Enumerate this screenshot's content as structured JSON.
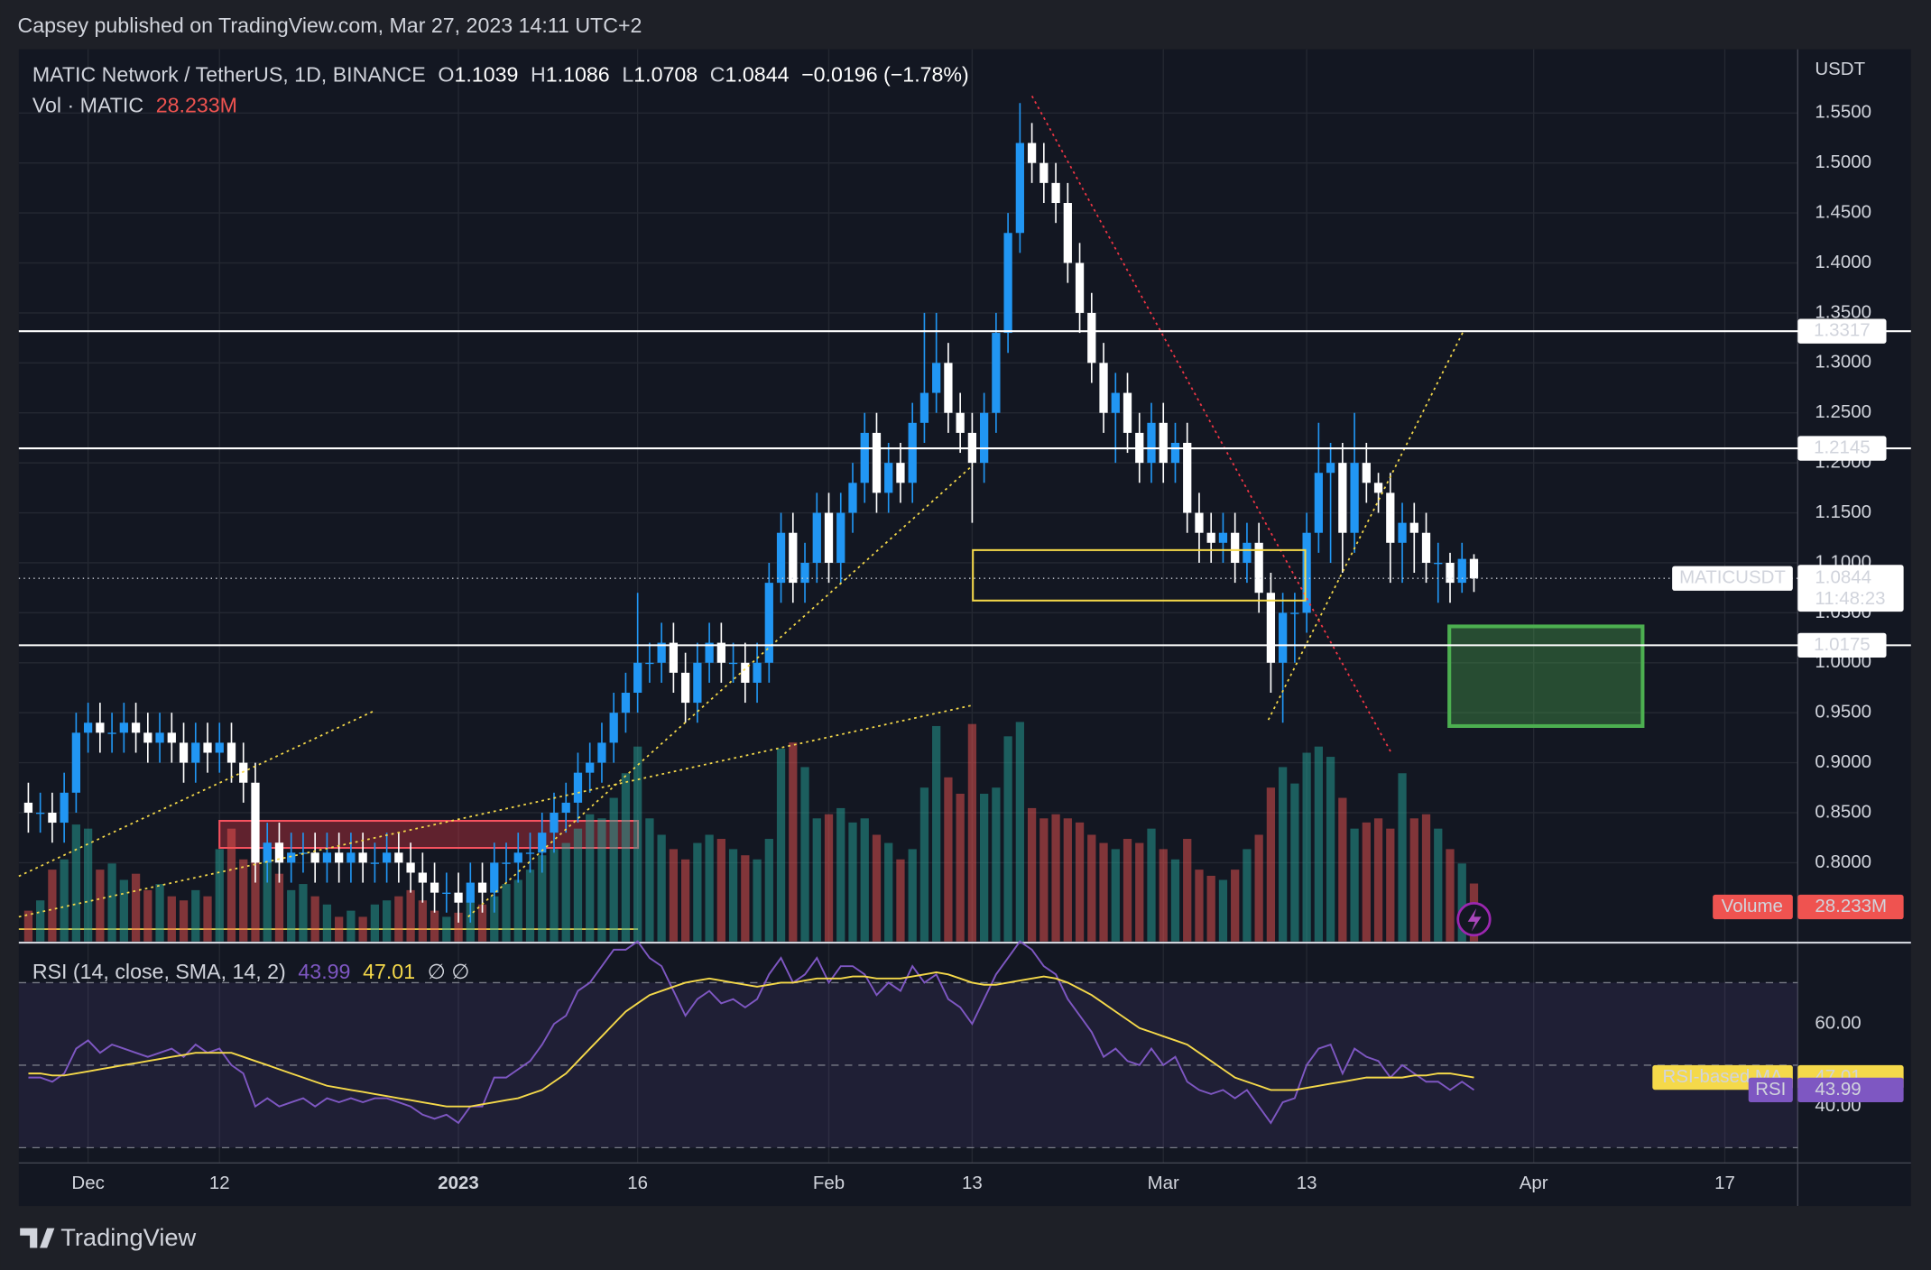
{
  "header": {
    "publisher": "Capsey published on TradingView.com, Mar 27, 2023 14:11 UTC+2",
    "brand": "TradingView"
  },
  "chart_data": {
    "type": "candlestick",
    "title": "MATIC Network / TetherUS, 1D, BINANCE",
    "ohlc_keys": [
      "O",
      "H",
      "L",
      "C"
    ],
    "ohlc_values": [
      "1.1039",
      "1.1086",
      "1.0708",
      "1.0844"
    ],
    "change": "−0.0196 (−1.78%)",
    "currency": "USDT",
    "colors": {
      "up": "#2196f3",
      "down": "#ffffff",
      "volume_up": "#26a69a",
      "volume_down": "#ef5350"
    },
    "xlim": [
      -0.8,
      148.1
    ],
    "xticks": [
      {
        "value": 5,
        "label": "Dec"
      },
      {
        "value": 16,
        "label": "12"
      },
      {
        "value": 36,
        "label": "2023"
      },
      {
        "value": 51,
        "label": "16"
      },
      {
        "value": 67,
        "label": "Feb"
      },
      {
        "value": 79,
        "label": "13"
      },
      {
        "value": 95,
        "label": "Mar"
      },
      {
        "value": 107,
        "label": "13"
      },
      {
        "value": 126,
        "label": "Apr"
      },
      {
        "value": 142,
        "label": "17"
      }
    ],
    "ylim": [
      0.7212,
      1.6138
    ],
    "yticks": [
      {
        "value": 0.8,
        "label": "0.8000"
      },
      {
        "value": 0.85,
        "label": "0.8500"
      },
      {
        "value": 0.9,
        "label": "0.9000"
      },
      {
        "value": 0.95,
        "label": "0.9500"
      },
      {
        "value": 1.0,
        "label": "1.0000"
      },
      {
        "value": 1.05,
        "label": "1.0500"
      },
      {
        "value": 1.1,
        "label": "1.1000"
      },
      {
        "value": 1.15,
        "label": "1.1500"
      },
      {
        "value": 1.2,
        "label": "1.2000"
      },
      {
        "value": 1.25,
        "label": "1.2500"
      },
      {
        "value": 1.3,
        "label": "1.3000"
      },
      {
        "value": 1.35,
        "label": "1.3500"
      },
      {
        "value": 1.4,
        "label": "1.4000"
      },
      {
        "value": 1.45,
        "label": "1.4500"
      },
      {
        "value": 1.5,
        "label": "1.5000"
      },
      {
        "value": 1.55,
        "label": "1.5500"
      }
    ],
    "open": [
      0.86,
      0.85,
      0.85,
      0.84,
      0.87,
      0.93,
      0.94,
      0.93,
      0.93,
      0.94,
      0.93,
      0.92,
      0.93,
      0.92,
      0.9,
      0.92,
      0.91,
      0.92,
      0.9,
      0.88,
      0.8,
      0.82,
      0.8,
      0.81,
      0.81,
      0.8,
      0.81,
      0.8,
      0.81,
      0.8,
      0.8,
      0.81,
      0.8,
      0.79,
      0.78,
      0.77,
      0.77,
      0.76,
      0.78,
      0.77,
      0.8,
      0.8,
      0.81,
      0.81,
      0.83,
      0.85,
      0.86,
      0.89,
      0.9,
      0.92,
      0.95,
      0.97,
      1.0,
      1.0,
      1.02,
      0.99,
      0.96,
      1.0,
      1.02,
      1.0,
      1.0,
      0.98,
      1.0,
      1.08,
      1.13,
      1.08,
      1.1,
      1.15,
      1.1,
      1.15,
      1.18,
      1.23,
      1.17,
      1.2,
      1.18,
      1.24,
      1.27,
      1.3,
      1.25,
      1.23,
      1.2,
      1.25,
      1.33,
      1.43,
      1.52,
      1.5,
      1.48,
      1.46,
      1.4,
      1.35,
      1.3,
      1.25,
      1.27,
      1.23,
      1.2,
      1.24,
      1.2,
      1.22,
      1.15,
      1.13,
      1.12,
      1.13,
      1.1,
      1.12,
      1.07,
      1.0,
      1.05,
      1.05,
      1.13,
      1.19,
      1.2,
      1.13,
      1.2,
      1.18,
      1.17,
      1.12,
      1.14,
      1.13,
      1.1,
      1.1,
      1.08,
      1.1039
    ],
    "high": [
      0.88,
      0.87,
      0.87,
      0.89,
      0.95,
      0.96,
      0.96,
      0.95,
      0.96,
      0.96,
      0.95,
      0.95,
      0.95,
      0.94,
      0.94,
      0.94,
      0.94,
      0.94,
      0.92,
      0.9,
      0.84,
      0.84,
      0.83,
      0.83,
      0.83,
      0.83,
      0.83,
      0.83,
      0.83,
      0.82,
      0.83,
      0.83,
      0.82,
      0.81,
      0.8,
      0.79,
      0.79,
      0.8,
      0.8,
      0.82,
      0.82,
      0.83,
      0.83,
      0.85,
      0.87,
      0.88,
      0.91,
      0.92,
      0.94,
      0.97,
      0.99,
      1.07,
      1.02,
      1.04,
      1.04,
      1.01,
      1.02,
      1.04,
      1.04,
      1.02,
      1.02,
      1.02,
      1.1,
      1.15,
      1.15,
      1.12,
      1.17,
      1.17,
      1.17,
      1.2,
      1.25,
      1.25,
      1.22,
      1.22,
      1.26,
      1.35,
      1.35,
      1.32,
      1.27,
      1.25,
      1.27,
      1.35,
      1.45,
      1.56,
      1.54,
      1.52,
      1.5,
      1.48,
      1.42,
      1.37,
      1.32,
      1.29,
      1.29,
      1.25,
      1.26,
      1.26,
      1.24,
      1.24,
      1.17,
      1.15,
      1.15,
      1.15,
      1.14,
      1.14,
      1.09,
      1.07,
      1.07,
      1.15,
      1.24,
      1.22,
      1.22,
      1.25,
      1.22,
      1.19,
      1.19,
      1.16,
      1.16,
      1.15,
      1.12,
      1.11,
      1.12,
      1.1086
    ],
    "low": [
      0.83,
      0.83,
      0.82,
      0.82,
      0.85,
      0.91,
      0.91,
      0.91,
      0.91,
      0.91,
      0.9,
      0.9,
      0.9,
      0.88,
      0.88,
      0.89,
      0.89,
      0.88,
      0.86,
      0.78,
      0.78,
      0.78,
      0.78,
      0.79,
      0.78,
      0.78,
      0.78,
      0.78,
      0.78,
      0.78,
      0.78,
      0.78,
      0.77,
      0.76,
      0.75,
      0.75,
      0.74,
      0.74,
      0.75,
      0.75,
      0.78,
      0.78,
      0.79,
      0.79,
      0.81,
      0.83,
      0.84,
      0.87,
      0.88,
      0.9,
      0.93,
      0.95,
      0.98,
      0.98,
      0.97,
      0.94,
      0.94,
      0.98,
      0.98,
      0.98,
      0.96,
      0.96,
      0.98,
      1.06,
      1.06,
      1.06,
      1.08,
      1.08,
      1.08,
      1.13,
      1.16,
      1.15,
      1.15,
      1.16,
      1.16,
      1.22,
      1.25,
      1.23,
      1.21,
      1.14,
      1.18,
      1.23,
      1.31,
      1.41,
      1.48,
      1.46,
      1.44,
      1.38,
      1.33,
      1.28,
      1.23,
      1.2,
      1.21,
      1.18,
      1.18,
      1.18,
      1.18,
      1.13,
      1.1,
      1.1,
      1.1,
      1.08,
      1.08,
      1.05,
      0.97,
      0.94,
      1.0,
      1.03,
      1.11,
      1.1,
      1.09,
      1.11,
      1.16,
      1.15,
      1.08,
      1.08,
      1.09,
      1.08,
      1.06,
      1.06,
      1.07,
      1.0708
    ],
    "close": [
      0.85,
      0.85,
      0.84,
      0.87,
      0.93,
      0.94,
      0.93,
      0.93,
      0.94,
      0.93,
      0.92,
      0.93,
      0.92,
      0.9,
      0.92,
      0.91,
      0.92,
      0.9,
      0.88,
      0.8,
      0.82,
      0.8,
      0.81,
      0.81,
      0.8,
      0.81,
      0.8,
      0.81,
      0.8,
      0.8,
      0.81,
      0.8,
      0.79,
      0.78,
      0.77,
      0.77,
      0.76,
      0.78,
      0.77,
      0.8,
      0.8,
      0.81,
      0.81,
      0.83,
      0.85,
      0.86,
      0.89,
      0.9,
      0.92,
      0.95,
      0.97,
      1.0,
      1.0,
      1.02,
      0.99,
      0.96,
      1.0,
      1.02,
      1.0,
      1.0,
      0.98,
      1.0,
      1.08,
      1.13,
      1.08,
      1.1,
      1.15,
      1.1,
      1.15,
      1.18,
      1.23,
      1.17,
      1.2,
      1.18,
      1.24,
      1.27,
      1.3,
      1.25,
      1.23,
      1.2,
      1.25,
      1.33,
      1.43,
      1.52,
      1.5,
      1.48,
      1.46,
      1.4,
      1.35,
      1.3,
      1.25,
      1.27,
      1.23,
      1.2,
      1.24,
      1.2,
      1.22,
      1.15,
      1.13,
      1.12,
      1.13,
      1.1,
      1.12,
      1.07,
      1.0,
      1.05,
      1.05,
      1.13,
      1.19,
      1.2,
      1.13,
      1.2,
      1.18,
      1.17,
      1.12,
      1.14,
      1.13,
      1.1,
      1.1,
      1.08,
      1.1039,
      1.0844
    ],
    "levels": [
      {
        "value": 1.3317,
        "label": "1.3317"
      },
      {
        "value": 1.2145,
        "label": "1.2145"
      },
      {
        "value": 1.0175,
        "label": "1.0175"
      }
    ],
    "last_price": {
      "symbol": "MATICUSDT",
      "value": 1.0844,
      "label": "1.0844",
      "countdown": "11:48:23"
    },
    "volume": {
      "title": "Vol · MATIC",
      "name": "Volume",
      "value_label": "28.233M",
      "ylim": [
        0,
        435
      ],
      "values": [
        15,
        20,
        35,
        40,
        57,
        55,
        35,
        38,
        30,
        33,
        25,
        28,
        22,
        20,
        25,
        22,
        45,
        55,
        40,
        58,
        45,
        33,
        25,
        28,
        22,
        18,
        12,
        15,
        12,
        18,
        20,
        22,
        25,
        20,
        15,
        12,
        14,
        20,
        18,
        22,
        28,
        30,
        35,
        42,
        45,
        48,
        55,
        62,
        60,
        70,
        82,
        95,
        60,
        52,
        45,
        40,
        48,
        52,
        50,
        45,
        42,
        40,
        50,
        94,
        97,
        85,
        60,
        62,
        65,
        58,
        60,
        52,
        48,
        40,
        45,
        75,
        105,
        80,
        72,
        106,
        72,
        75,
        100,
        107,
        65,
        60,
        62,
        60,
        58,
        52,
        48,
        45,
        50,
        48,
        55,
        45,
        40,
        50,
        35,
        32,
        30,
        35,
        45,
        52,
        75,
        85,
        77,
        92,
        95,
        90,
        70,
        55,
        58,
        60,
        55,
        82,
        60,
        62,
        55,
        45,
        38,
        28.233
      ]
    },
    "rsi": {
      "title": "RSI (14, close, SMA, 14, 2)",
      "name": "RSI",
      "ma_name": "RSI-based MA",
      "value_label": "43.99",
      "ma_label": "47.01",
      "icons": "∅  ∅",
      "color": "#7e57c2",
      "ma_color": "#f5d94a",
      "ylim": [
        26.3,
        78.5
      ],
      "bands": [
        30,
        50,
        70
      ],
      "yticks": [
        {
          "value": 40,
          "label": "40.00"
        },
        {
          "value": 60,
          "label": "60.00"
        }
      ],
      "values": [
        47,
        47,
        46,
        48,
        54,
        56,
        53,
        55,
        54,
        53,
        52,
        53,
        54,
        52,
        55,
        53,
        54,
        50,
        48,
        40,
        42,
        40,
        41,
        42,
        40,
        42,
        41,
        42,
        41,
        42,
        42,
        41,
        40,
        38,
        37,
        38,
        36,
        40,
        40,
        47,
        47,
        49,
        51,
        55,
        60,
        62,
        68,
        70,
        74,
        78,
        78,
        80,
        76,
        74,
        68,
        62,
        66,
        68,
        65,
        66,
        64,
        66,
        72,
        76,
        70,
        72,
        76,
        70,
        74,
        74,
        72,
        67,
        70,
        68,
        74,
        70,
        72,
        66,
        64,
        60,
        66,
        72,
        76,
        80,
        78,
        74,
        72,
        66,
        62,
        58,
        52,
        54,
        51,
        50,
        54,
        50,
        52,
        46,
        44,
        43,
        44,
        42,
        44,
        40,
        36,
        41,
        42,
        50,
        54,
        55,
        48,
        54,
        52,
        51,
        47,
        50,
        48,
        46,
        46,
        44,
        46,
        43.99
      ],
      "ma": [
        48,
        48,
        47.5,
        47.5,
        48,
        48.5,
        49,
        49.5,
        50,
        50.5,
        51,
        51.5,
        52,
        52.5,
        53,
        53,
        53,
        53,
        52,
        51,
        50,
        49,
        48,
        47,
        46,
        45,
        44.5,
        44,
        43.5,
        43,
        42.5,
        42,
        41.5,
        41,
        40.5,
        40,
        40,
        40,
        40.5,
        41,
        41.5,
        42,
        43,
        44,
        46,
        48,
        51,
        54,
        57,
        60,
        63,
        65,
        67,
        68,
        69,
        70,
        70.5,
        71,
        70.5,
        70,
        69.5,
        69,
        69.5,
        70,
        70,
        70.5,
        71,
        71,
        71,
        71.5,
        71.5,
        71,
        71,
        71,
        71.5,
        72,
        72.5,
        72,
        71,
        70,
        69.5,
        69.5,
        70,
        70.5,
        71,
        71.5,
        71,
        70,
        68.5,
        67,
        65,
        63,
        61,
        59,
        58,
        57,
        56,
        55,
        53,
        51,
        49,
        47,
        46,
        45,
        44,
        44,
        44,
        44.5,
        45,
        45.5,
        46,
        46.5,
        47,
        47,
        47,
        47,
        47.5,
        47.5,
        48,
        48,
        47.5,
        47.01
      ]
    }
  }
}
